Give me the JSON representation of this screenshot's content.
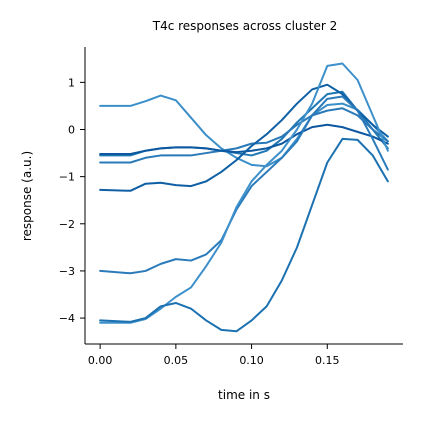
{
  "chart_data": {
    "type": "line",
    "title": "T4c responses across cluster 2",
    "xlabel": "time in s",
    "ylabel": "response (a.u.)",
    "xlim": [
      -0.01,
      0.2
    ],
    "ylim": [
      -4.55,
      1.75
    ],
    "xticks": [
      0.0,
      0.05,
      0.1,
      0.15
    ],
    "xtick_labels": [
      "0.00",
      "0.05",
      "0.10",
      "0.15"
    ],
    "yticks": [
      -4,
      -3,
      -2,
      -1,
      0,
      1
    ],
    "ytick_labels": [
      "−4",
      "−3",
      "−2",
      "−1",
      "0",
      "1"
    ],
    "grid": false,
    "x": [
      0.0,
      0.02,
      0.03,
      0.04,
      0.05,
      0.06,
      0.07,
      0.08,
      0.09,
      0.1,
      0.11,
      0.12,
      0.13,
      0.14,
      0.15,
      0.16,
      0.17,
      0.18,
      0.19
    ],
    "series": [
      {
        "color": "#3a8fc9",
        "values": [
          0.5,
          0.5,
          0.6,
          0.72,
          0.62,
          0.25,
          -0.12,
          -0.4,
          -0.6,
          -0.75,
          -0.78,
          -0.6,
          -0.2,
          0.3,
          0.52,
          0.55,
          0.42,
          0.1,
          -0.25
        ]
      },
      {
        "color": "#1f77b4",
        "values": [
          -0.55,
          -0.55,
          -0.45,
          -0.4,
          -0.38,
          -0.38,
          -0.4,
          -0.45,
          -0.5,
          -0.55,
          -0.45,
          -0.2,
          0.15,
          0.45,
          0.75,
          0.8,
          0.4,
          0.0,
          -0.4
        ]
      },
      {
        "color": "#2a7ab9",
        "values": [
          -0.7,
          -0.7,
          -0.6,
          -0.55,
          -0.55,
          -0.55,
          -0.5,
          -0.45,
          -0.4,
          -0.3,
          -0.28,
          -0.15,
          0.1,
          0.3,
          0.4,
          0.45,
          0.3,
          0.0,
          -0.25
        ]
      },
      {
        "color": "#0d58a0",
        "values": [
          -0.52,
          -0.52,
          -0.45,
          -0.4,
          -0.38,
          -0.38,
          -0.4,
          -0.45,
          -0.48,
          -0.45,
          -0.4,
          -0.3,
          -0.1,
          0.05,
          0.1,
          0.05,
          -0.05,
          -0.15,
          -0.3
        ]
      },
      {
        "color": "#0f5fa5",
        "values": [
          -1.28,
          -1.3,
          -1.15,
          -1.13,
          -1.18,
          -1.2,
          -1.1,
          -0.9,
          -0.65,
          -0.35,
          -0.1,
          0.2,
          0.55,
          0.85,
          0.95,
          0.75,
          0.4,
          0.1,
          -0.15
        ]
      },
      {
        "color": "#2b7bbb",
        "values": [
          -3.0,
          -3.05,
          -3.0,
          -2.85,
          -2.75,
          -2.78,
          -2.65,
          -2.35,
          -1.7,
          -1.2,
          -0.9,
          -0.6,
          -0.25,
          0.3,
          0.65,
          0.7,
          0.4,
          -0.2,
          -0.85
        ]
      },
      {
        "color": "#3d90cb",
        "values": [
          -4.1,
          -4.1,
          -4.02,
          -3.8,
          -3.55,
          -3.35,
          -2.9,
          -2.4,
          -1.65,
          -1.1,
          -0.75,
          -0.45,
          0.0,
          0.55,
          1.35,
          1.4,
          1.05,
          0.3,
          -0.45
        ]
      },
      {
        "color": "#1c71b1",
        "values": [
          -4.05,
          -4.08,
          -4.0,
          -3.75,
          -3.68,
          -3.8,
          -4.05,
          -4.25,
          -4.28,
          -4.05,
          -3.75,
          -3.2,
          -2.5,
          -1.6,
          -0.7,
          -0.2,
          -0.22,
          -0.55,
          -1.1
        ]
      }
    ]
  }
}
